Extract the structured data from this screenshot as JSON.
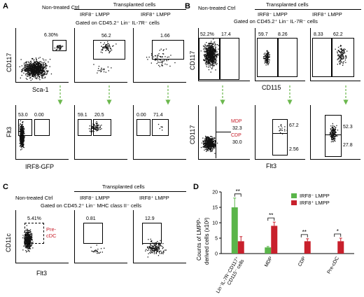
{
  "panels": {
    "A": {
      "label": "A",
      "header": "Transplanted cells",
      "gate": "Gated on CD45.2⁺ Lin⁻ IL-7R⁻ cells",
      "col_titles": [
        "Non-treated Ctrl",
        "IRF8⁻ LMPP",
        "IRF8⁺ LMPP"
      ],
      "top_y": "CD117",
      "top_x": "Sca-1",
      "bottom_y": "Flt3",
      "bottom_x": "IRF8-GFP",
      "top_values": [
        "6.30%",
        "56.2",
        "1.66"
      ],
      "bottom_values": [
        [
          "53.0",
          "0.00"
        ],
        [
          "59.1",
          "20.5"
        ],
        [
          "0.00",
          "71.4"
        ]
      ]
    },
    "B": {
      "label": "B",
      "header": "Transplanted cells",
      "gate": "Gated on CD45.2⁺ Lin⁻ IL-7R⁻ cells",
      "col_titles": [
        "Non-treated Ctrl",
        "IRF8⁻ LMPP",
        "IRF8⁺ LMPP"
      ],
      "top_y": "CD117",
      "top_x": "CD115",
      "bottom_y": "CD117",
      "bottom_x": "Flt3",
      "top_values": [
        [
          "52.2%",
          "17.4"
        ],
        [
          "59.7",
          "8.26"
        ],
        [
          "8.33",
          "62.2"
        ]
      ],
      "mdp_label": "MDP",
      "mdp_value": "32.3",
      "cdp_label": "CDP",
      "cdp_value": "30.0",
      "bottom_values": [
        [
          "67.2",
          "2.56"
        ],
        [
          "52.3",
          "27.8"
        ]
      ]
    },
    "C": {
      "label": "C",
      "header": "Transplanted cells",
      "gate": "Gated on CD45.2⁺ Lin⁻ MHC class II⁻ cells",
      "col_titles": [
        "Non-treated Ctrl",
        "IRF8⁻ LMPP",
        "IRF8⁺ LMPP"
      ],
      "y": "CD11c",
      "x": "Flt3",
      "values": [
        "5.41%",
        "0.81",
        "12.9"
      ],
      "precdc_1": "Pre-",
      "precdc_2": "cDC"
    },
    "D": {
      "label": "D",
      "ylabel_1": "Counts of LMPP-",
      "ylabel_2": "derived cells (x10²)"
    }
  },
  "chart_data": {
    "type": "bar",
    "title": "",
    "ylabel": "Counts of LMPP-derived cells (x10²)",
    "ylim": [
      0,
      20
    ],
    "yticks": [
      "0",
      "5",
      "10",
      "15",
      "20"
    ],
    "categories": [
      "Lin⁻IL-7R⁻CD117⁺CD115⁻ cells",
      "MDP",
      "CDP",
      "Pre-cDC"
    ],
    "category_lines": [
      [
        "Lin⁻IL-7R⁻CD117⁺",
        "CD115⁻ cells"
      ],
      [
        "MDP"
      ],
      [
        "CDP"
      ],
      [
        "Pre-cDC"
      ]
    ],
    "series": [
      {
        "name": "IRF8⁻ LMPP",
        "color": "#5ab54a",
        "values": [
          15,
          2,
          0,
          0
        ],
        "errors": [
          3,
          0.3,
          0,
          0
        ]
      },
      {
        "name": "IRF8⁺ LMPP",
        "color": "#c8202c",
        "values": [
          4,
          9,
          4,
          4
        ],
        "errors": [
          1.5,
          1.2,
          0.8,
          1.0
        ]
      }
    ],
    "significance": [
      "**",
      "**",
      "**",
      "*"
    ],
    "legend_position": "top-right"
  }
}
